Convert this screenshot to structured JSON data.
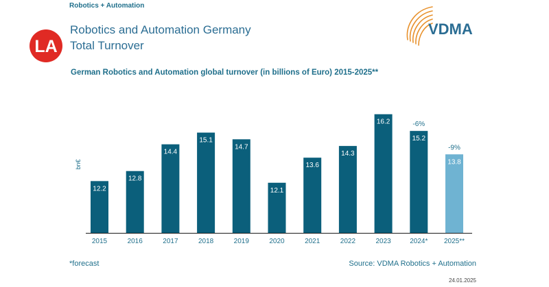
{
  "header_label": "Robotics + Automation",
  "title_line1": "Robotics and Automation Germany",
  "title_line2": "Total Turnover",
  "logo_left_text": "LA",
  "logo_right_text": "VDMA",
  "chart_data": {
    "type": "bar",
    "title": "German Robotics and Automation global turnover (in billions of Euro) 2015-2025**",
    "ylabel": "bn€",
    "xlabel": "",
    "categories": [
      "2015",
      "2016",
      "2017",
      "2018",
      "2019",
      "2020",
      "2021",
      "2022",
      "2023",
      "2024*",
      "2025**"
    ],
    "values": [
      12.2,
      12.8,
      14.4,
      15.1,
      14.7,
      12.1,
      13.6,
      14.3,
      16.2,
      15.2,
      13.8
    ],
    "value_labels": [
      "12.2",
      "12.8",
      "14.4",
      "15.1",
      "14.7",
      "12.1",
      "13.6",
      "14.3",
      "16.2",
      "15.2",
      "13.8"
    ],
    "change_labels": [
      "",
      "",
      "",
      "",
      "",
      "",
      "",
      "",
      "",
      "-6%",
      "-9%"
    ],
    "ylim": [
      9.1,
      17.05
    ],
    "grid": false,
    "legend": "none",
    "colors": {
      "actual": "#0b5f7b",
      "forecast": "#6fb3d2",
      "value_label_actual": "#ffffff",
      "value_label_forecast": "#ffffff",
      "change_label": "#1f6f8b",
      "tick_label": "#1f6f8b",
      "axis": "#1a1a1a"
    },
    "forecast_index": 10
  },
  "footnote": "*forecast",
  "source": "Source: VDMA Robotics + Automation",
  "date": "24.01.2025"
}
